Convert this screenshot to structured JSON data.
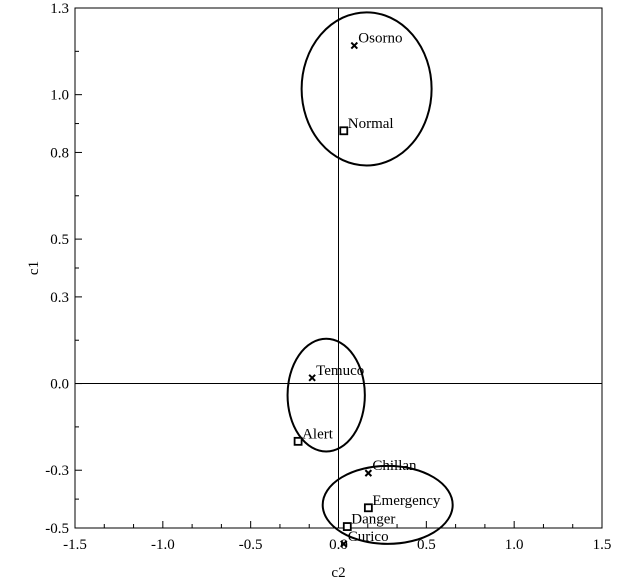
{
  "chart_data": {
    "type": "scatter",
    "xlabel": "c2",
    "ylabel": "c1",
    "xlim": [
      -1.5,
      1.5
    ],
    "ylim": [
      -0.5,
      1.3
    ],
    "x_ticks": [
      "-1.5",
      "-1.0",
      "-0.5",
      "0.0",
      "0.5",
      "1.0",
      "1.5"
    ],
    "y_ticks": [
      "-0.5",
      "-0.3",
      "0.0",
      "0.3",
      "0.5",
      "0.8",
      "1.0",
      "1.3"
    ],
    "series": [
      {
        "marker": "cross",
        "points": [
          {
            "label": "Osorno",
            "x": 0.09,
            "y": 1.17
          },
          {
            "label": "Temuco",
            "x": -0.15,
            "y": 0.02
          },
          {
            "label": "Chillan",
            "x": 0.17,
            "y": -0.31
          },
          {
            "label": "Curico",
            "x": 0.03,
            "y": -0.555
          }
        ]
      },
      {
        "marker": "square",
        "points": [
          {
            "label": "Normal",
            "x": 0.03,
            "y": 0.875
          },
          {
            "label": "Alert",
            "x": -0.23,
            "y": -0.2
          },
          {
            "label": "Emergency",
            "x": 0.17,
            "y": -0.43
          },
          {
            "label": "Danger",
            "x": 0.05,
            "y": -0.495
          }
        ]
      }
    ],
    "ellipses": [
      {
        "cx": 0.16,
        "cy": 1.02,
        "rx": 0.37,
        "ry": 0.265
      },
      {
        "cx": -0.07,
        "cy": -0.04,
        "rx": 0.22,
        "ry": 0.195
      },
      {
        "cx": 0.28,
        "cy": -0.42,
        "rx": 0.37,
        "ry": 0.135
      }
    ],
    "reference_lines": {
      "x": 0,
      "y": 0
    },
    "grid": false
  }
}
